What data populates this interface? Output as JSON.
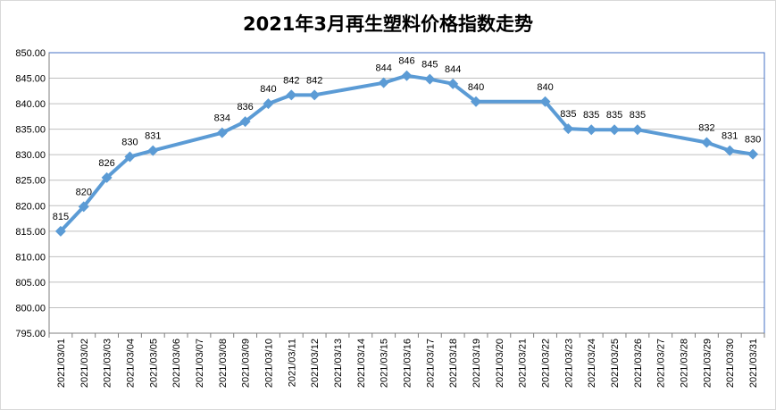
{
  "chart_data": {
    "type": "line",
    "title": "2021年3月再生塑料价格指数走势",
    "xlabel": "",
    "ylabel": "",
    "ylim": [
      795,
      850
    ],
    "ytick_step": 5,
    "ytick_labels": [
      "795.00",
      "800.00",
      "805.00",
      "810.00",
      "815.00",
      "820.00",
      "825.00",
      "830.00",
      "835.00",
      "840.00",
      "845.00",
      "850.00"
    ],
    "categories": [
      "2021/03/01",
      "2021/03/02",
      "2021/03/03",
      "2021/03/04",
      "2021/03/05",
      "2021/03/06",
      "2021/03/07",
      "2021/03/08",
      "2021/03/09",
      "2021/03/10",
      "2021/03/11",
      "2021/03/12",
      "2021/03/13",
      "2021/03/14",
      "2021/03/15",
      "2021/03/16",
      "2021/03/17",
      "2021/03/18",
      "2021/03/19",
      "2021/03/20",
      "2021/03/21",
      "2021/03/22",
      "2021/03/23",
      "2021/03/24",
      "2021/03/25",
      "2021/03/26",
      "2021/03/27",
      "2021/03/28",
      "2021/03/29",
      "2021/03/30",
      "2021/03/31"
    ],
    "series": [
      {
        "color": "#5b9bd5",
        "points": [
          {
            "x": "2021/03/01",
            "y": 815.0,
            "label": "815"
          },
          {
            "x": "2021/03/02",
            "y": 819.8,
            "label": "820"
          },
          {
            "x": "2021/03/03",
            "y": 825.5,
            "label": "826"
          },
          {
            "x": "2021/03/04",
            "y": 829.6,
            "label": "830"
          },
          {
            "x": "2021/03/05",
            "y": 830.8,
            "label": "831"
          },
          {
            "x": "2021/03/08",
            "y": 834.3,
            "label": "834"
          },
          {
            "x": "2021/03/09",
            "y": 836.5,
            "label": "836"
          },
          {
            "x": "2021/03/10",
            "y": 840.0,
            "label": "840"
          },
          {
            "x": "2021/03/11",
            "y": 841.7,
            "label": "842"
          },
          {
            "x": "2021/03/12",
            "y": 841.7,
            "label": "842"
          },
          {
            "x": "2021/03/15",
            "y": 844.1,
            "label": "844"
          },
          {
            "x": "2021/03/16",
            "y": 845.5,
            "label": "846"
          },
          {
            "x": "2021/03/17",
            "y": 844.8,
            "label": "845"
          },
          {
            "x": "2021/03/18",
            "y": 843.9,
            "label": "844"
          },
          {
            "x": "2021/03/19",
            "y": 840.4,
            "label": "840"
          },
          {
            "x": "2021/03/22",
            "y": 840.4,
            "label": "840"
          },
          {
            "x": "2021/03/23",
            "y": 835.1,
            "label": "835"
          },
          {
            "x": "2021/03/24",
            "y": 834.9,
            "label": "835"
          },
          {
            "x": "2021/03/25",
            "y": 834.9,
            "label": "835"
          },
          {
            "x": "2021/03/26",
            "y": 834.9,
            "label": "835"
          },
          {
            "x": "2021/03/29",
            "y": 832.4,
            "label": "832"
          },
          {
            "x": "2021/03/30",
            "y": 830.8,
            "label": "831"
          },
          {
            "x": "2021/03/31",
            "y": 830.1,
            "label": "830"
          }
        ]
      }
    ],
    "grid": true,
    "legend": "none",
    "colors": {
      "gridline": "#bfbfbf",
      "axis": "#7f7f7f",
      "plot_border": "#4472c4"
    }
  }
}
